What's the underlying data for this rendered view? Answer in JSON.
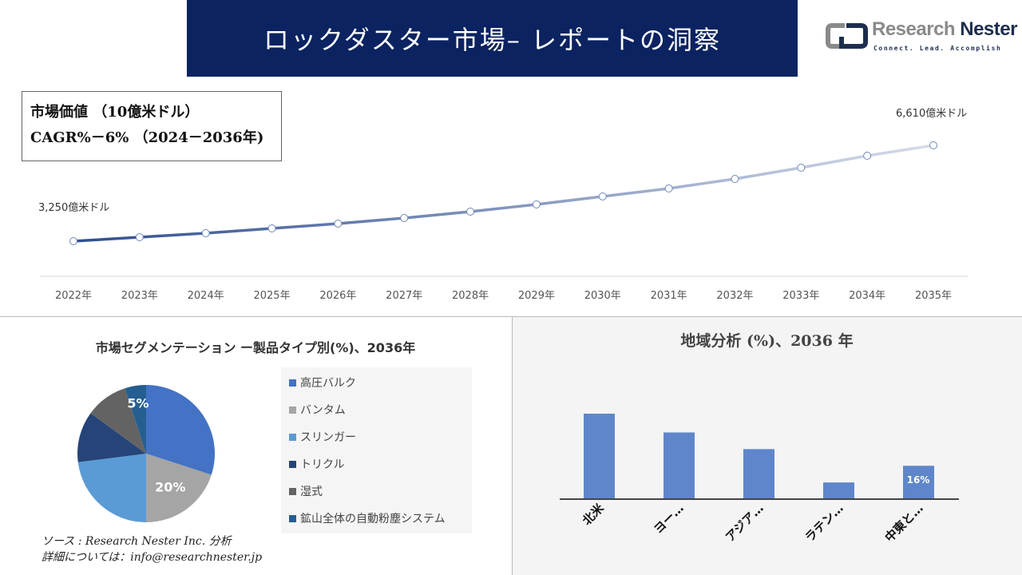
{
  "header": {
    "title": "ロックダスター市場– レポートの洞察"
  },
  "logo": {
    "name_part1": "Research",
    "name_part2": "Nester",
    "tagline": "Connect. Lead. Accomplish"
  },
  "infobox": {
    "line1": "市場価値 （10億米ドル）",
    "line2": "CAGR%－6% （2024－2036年)"
  },
  "source": {
    "line1": "ソース : Research Nester Inc. 分析",
    "line2": "詳細については：info@researchnester.jp"
  },
  "chart_data": [
    {
      "type": "line",
      "x": [
        "2022年",
        "2023年",
        "2024年",
        "2025年",
        "2026年",
        "2027年",
        "2028年",
        "2029年",
        "2030年",
        "2031年",
        "2032年",
        "2033年",
        "2034年",
        "2035年"
      ],
      "values": [
        3250,
        3390,
        3530,
        3698,
        3866,
        4062,
        4286,
        4538,
        4818,
        5098,
        5434,
        5826,
        6246,
        6610
      ],
      "annotations": {
        "start": "3,250億米ドル",
        "end": "6,610億米ドル"
      },
      "colors": {
        "start": "#2f4f8f",
        "end": "#d6dcea"
      },
      "grid": false
    },
    {
      "type": "pie",
      "title": "市場セグメンテーション ー製品タイプ別(%)、2036年",
      "categories": [
        "高圧バルク",
        "バンタム",
        "スリンガー",
        "トリクル",
        "湿式",
        "鉱山全体の自動粉塵システム"
      ],
      "values": [
        30,
        20,
        23,
        12,
        10,
        5
      ],
      "colors": [
        "#4472c4",
        "#a5a5a5",
        "#5b9bd5",
        "#264478",
        "#636363",
        "#255e91"
      ],
      "data_labels": {
        "1": "20%",
        "5": "5%"
      },
      "legend": "right"
    },
    {
      "type": "bar",
      "title": "地域分析 (%)、2036 年",
      "categories": [
        "北米",
        "ヨー…",
        "アジア…",
        "ラテン…",
        "中東と…"
      ],
      "values": [
        41,
        32,
        24,
        8,
        16
      ],
      "data_labels": {
        "4": "16%"
      },
      "color": "#5f86ca"
    }
  ]
}
